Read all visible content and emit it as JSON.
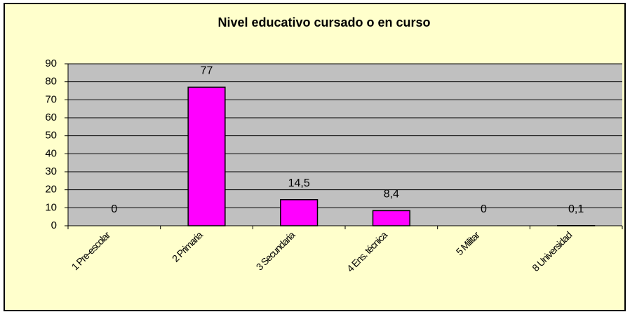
{
  "chart_data": {
    "type": "bar",
    "title": "Nivel educativo cursado o en curso",
    "categories": [
      "1 Pre-escolar",
      "2 Primaria",
      "3 Secundaria",
      "4 Ens. técnica",
      "5 Militar",
      "8 Universidad"
    ],
    "values": [
      0,
      77,
      14.5,
      8.4,
      0,
      0.1
    ],
    "value_labels": [
      "0",
      "77",
      "14,5",
      "8,4",
      "0",
      "0,1"
    ],
    "color": "#ff00ff",
    "ylim": [
      0,
      90
    ],
    "yticks": [
      0,
      10,
      20,
      30,
      40,
      50,
      60,
      70,
      80,
      90
    ],
    "grid": true
  }
}
